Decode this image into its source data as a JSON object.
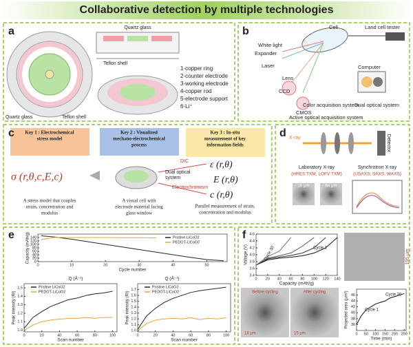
{
  "title": "Collaborative detection by multiple technologies",
  "panel_a": {
    "label": "a",
    "top_label": "Quartz glass",
    "side_label": "Teflon shell",
    "bottom_left": "Quartz glass",
    "bottom_right": "Teflon shell",
    "legend": [
      "1-copper ring",
      "2-counter electrode",
      "3-working electrode",
      "4-copper rod",
      "5-electrode support",
      "6-Li⁺"
    ]
  },
  "panel_b": {
    "label": "b",
    "cell": "Cell",
    "tester": "Land cell tester",
    "white_light": "White light",
    "expander": "Expander",
    "laser": "Laser",
    "lens": "Lens",
    "ccd": "CCD",
    "cmos": "CMOS",
    "computer": "Computer",
    "color_system": "Color acquisition system",
    "dual_system": "Dual optical system",
    "active_system": "Active optical acquisition system"
  },
  "panel_c": {
    "label": "c",
    "keys": [
      {
        "title": [
          "Key 1 : Electrochemical",
          "stress model"
        ],
        "desc": [
          "A stress model that couples",
          "strain, concentration and",
          "modulus"
        ]
      },
      {
        "title": [
          "Key 2 : Visualized",
          "mechano-electrochemical",
          "process"
        ],
        "desc": [
          "A visual cell with",
          "electrode material facing",
          "glass window"
        ]
      },
      {
        "title": [
          "Key 3 : In-situ",
          "measurement of key",
          "information fields"
        ],
        "desc": [
          "Parallel measurement of strain,",
          "concentration and modulus"
        ]
      }
    ],
    "stress_formula": "σ (r,θ,c,E,c)",
    "strain_formula": "ε (r,θ)",
    "modulus_formula": "E (r,θ)",
    "conc_formula": "c (r,θ)",
    "dic": "DIC",
    "dual": [
      "Dual optical",
      "system"
    ],
    "electrochromism": "Electrochromism"
  },
  "panel_d": {
    "label": "d",
    "xray": "X-ray",
    "detector": "Detector",
    "lab": "Laboratory X-ray",
    "lab_methods": "(HRES TXM, LOFV TXM)",
    "sync": "Synchrotron X-ray",
    "sync_methods": "(USAXS, SAXS, WAXS)",
    "scale1": "16 μm",
    "scale2": "64 μm"
  },
  "panel_e": {
    "label": "e",
    "q_left": "Q (Å⁻¹)",
    "q_right": "Q (Å⁻¹)",
    "charts": [
      {
        "type": "line",
        "xlabel": "Cycle number",
        "ylabel": "Capacity (mAh/g)",
        "x": [
          1,
          5,
          10,
          15,
          20,
          25,
          30,
          35,
          40,
          45,
          50,
          55
        ],
        "xlim": [
          0,
          56
        ],
        "xticks": [
          0,
          10,
          20,
          30,
          40,
          50
        ],
        "ylim": [
          0,
          160
        ],
        "yticks": [
          0,
          20,
          40,
          60,
          80,
          100,
          120,
          140
        ],
        "series": [
          {
            "name": "Pristine LiCoO2",
            "color": "#222222",
            "values": [
              150,
              143,
              130,
              115,
              100,
              85,
              70,
              55,
              40,
              25,
              12,
              5
            ]
          },
          {
            "name": "PEDOT-LiCoO2",
            "color": "#e8a33a",
            "values": [
              128,
              141,
              140,
              140,
              140,
              139,
              139,
              138,
              null,
              null,
              null,
              null
            ]
          }
        ]
      },
      {
        "type": "line",
        "xlabel": "Scan number",
        "ylabel": "Peak intensity (RI)",
        "x": [
          0,
          10,
          20,
          30,
          40,
          50,
          60,
          70,
          80,
          90,
          100
        ],
        "xlim": [
          0,
          105
        ],
        "xticks": [
          0,
          20,
          40,
          60,
          80,
          100
        ],
        "ylim": [
          0.98,
          1.55
        ],
        "yticks": [
          {
            "value": 1,
            "label": "1.0"
          },
          1.1,
          1.2,
          1.3,
          1.4,
          1.5
        ],
        "series": [
          {
            "name": "Pristine LiCoO2",
            "color": "#222222",
            "values": [
              1.02,
              1.15,
              1.22,
              1.28,
              1.32,
              1.36,
              1.38,
              1.41,
              1.43,
              1.44,
              1.46
            ]
          },
          {
            "name": "PEDOT-LiCoO2",
            "color": "#e8a33a",
            "values": [
              1.0,
              1.06,
              1.1,
              1.12,
              1.13,
              1.14,
              1.14,
              1.15,
              1.14,
              1.15,
              1.15
            ]
          }
        ]
      },
      {
        "type": "line",
        "xlabel": "Scan number",
        "ylabel": "Peak intensity (RI)",
        "x": [
          0,
          10,
          20,
          30,
          40,
          50,
          60,
          70,
          80,
          90,
          100
        ],
        "xlim": [
          0,
          105
        ],
        "xticks": [
          0,
          20,
          40,
          60,
          80,
          100
        ],
        "ylim": [
          0.98,
          1.8
        ],
        "yticks": [
          {
            "value": 1,
            "label": "1.0"
          },
          1.1,
          1.2,
          1.3,
          1.4,
          1.5,
          1.6,
          1.7
        ],
        "series": [
          {
            "name": "Pristine LiCoO2",
            "color": "#222222",
            "values": [
              1.02,
              1.25,
              1.38,
              1.48,
              1.55,
              1.6,
              1.65,
              1.68,
              1.7,
              1.72,
              1.74
            ]
          },
          {
            "name": "PEDOT-LiCoO2",
            "color": "#e8a33a",
            "values": [
              1.0,
              1.12,
              1.18,
              1.2,
              1.21,
              1.2,
              1.22,
              1.19,
              1.21,
              1.2,
              1.22
            ]
          }
        ]
      }
    ]
  },
  "panel_f": {
    "label": "f",
    "cycle1": "Cycle 1",
    "cycle30": "Cycle 30",
    "scale_big": "195 μm",
    "before": "Before cycling",
    "after": "After cycling",
    "scale_a": "18 μm",
    "scale_b": "15 μm",
    "area_cycle1": "Cycle 1",
    "area_cycle30": "Cycle 30",
    "charts": [
      {
        "type": "line",
        "xlabel": "Capacity (mAh/g)",
        "ylabel": "Voltage (V)",
        "x": [
          0,
          20,
          40,
          60,
          80,
          100,
          120,
          140
        ],
        "xlim": [
          0,
          140
        ],
        "xticks": [
          0,
          20,
          40,
          60,
          80,
          100,
          120,
          140
        ],
        "ylim": [
          3.4,
          4.6
        ],
        "yticks": [
          {
            "value": 3.4,
            "label": "3.4"
          },
          {
            "value": 3.6,
            "label": "3.6"
          },
          {
            "value": 3.8,
            "label": "3.8"
          },
          {
            "value": 4,
            "label": "4.0"
          },
          {
            "value": 4.2,
            "label": "4.2"
          },
          {
            "value": 4.4,
            "label": "4.4"
          },
          {
            "value": 4.6,
            "label": "4.6"
          }
        ],
        "series": [
          {
            "color": "#111111",
            "values": [
              3.7,
              3.85,
              3.9,
              3.93,
              3.97,
              4.05,
              4.2,
              4.5
            ]
          },
          {
            "color": "#333333",
            "values": [
              3.7,
              3.88,
              3.93,
              3.98,
              4.05,
              4.2,
              4.5,
              null
            ]
          },
          {
            "color": "#555555",
            "values": [
              3.7,
              3.9,
              3.97,
              4.05,
              4.25,
              4.5,
              null,
              null
            ]
          },
          {
            "color": "#777777",
            "values": [
              3.7,
              3.95,
              4.1,
              4.5,
              null,
              null,
              null,
              null
            ]
          }
        ]
      },
      {
        "type": "line",
        "xlabel": "Time (min)",
        "ylabel": "Projected area (μm²)",
        "x": [
          0,
          25,
          50,
          75,
          100,
          125,
          150,
          175,
          200,
          225,
          250
        ],
        "xlim": [
          0,
          260
        ],
        "xticks": [
          0,
          50,
          100,
          150,
          200,
          250
        ],
        "ylim": [
          34,
          48
        ],
        "yticks": [
          36,
          38,
          40,
          42,
          44,
          46
        ],
        "series": [
          {
            "color": "#111111",
            "values": [
              36,
              39,
              41,
              42,
              43,
              43.5,
              44,
              45,
              45.5,
              46,
              46.5
            ]
          }
        ]
      }
    ]
  }
}
